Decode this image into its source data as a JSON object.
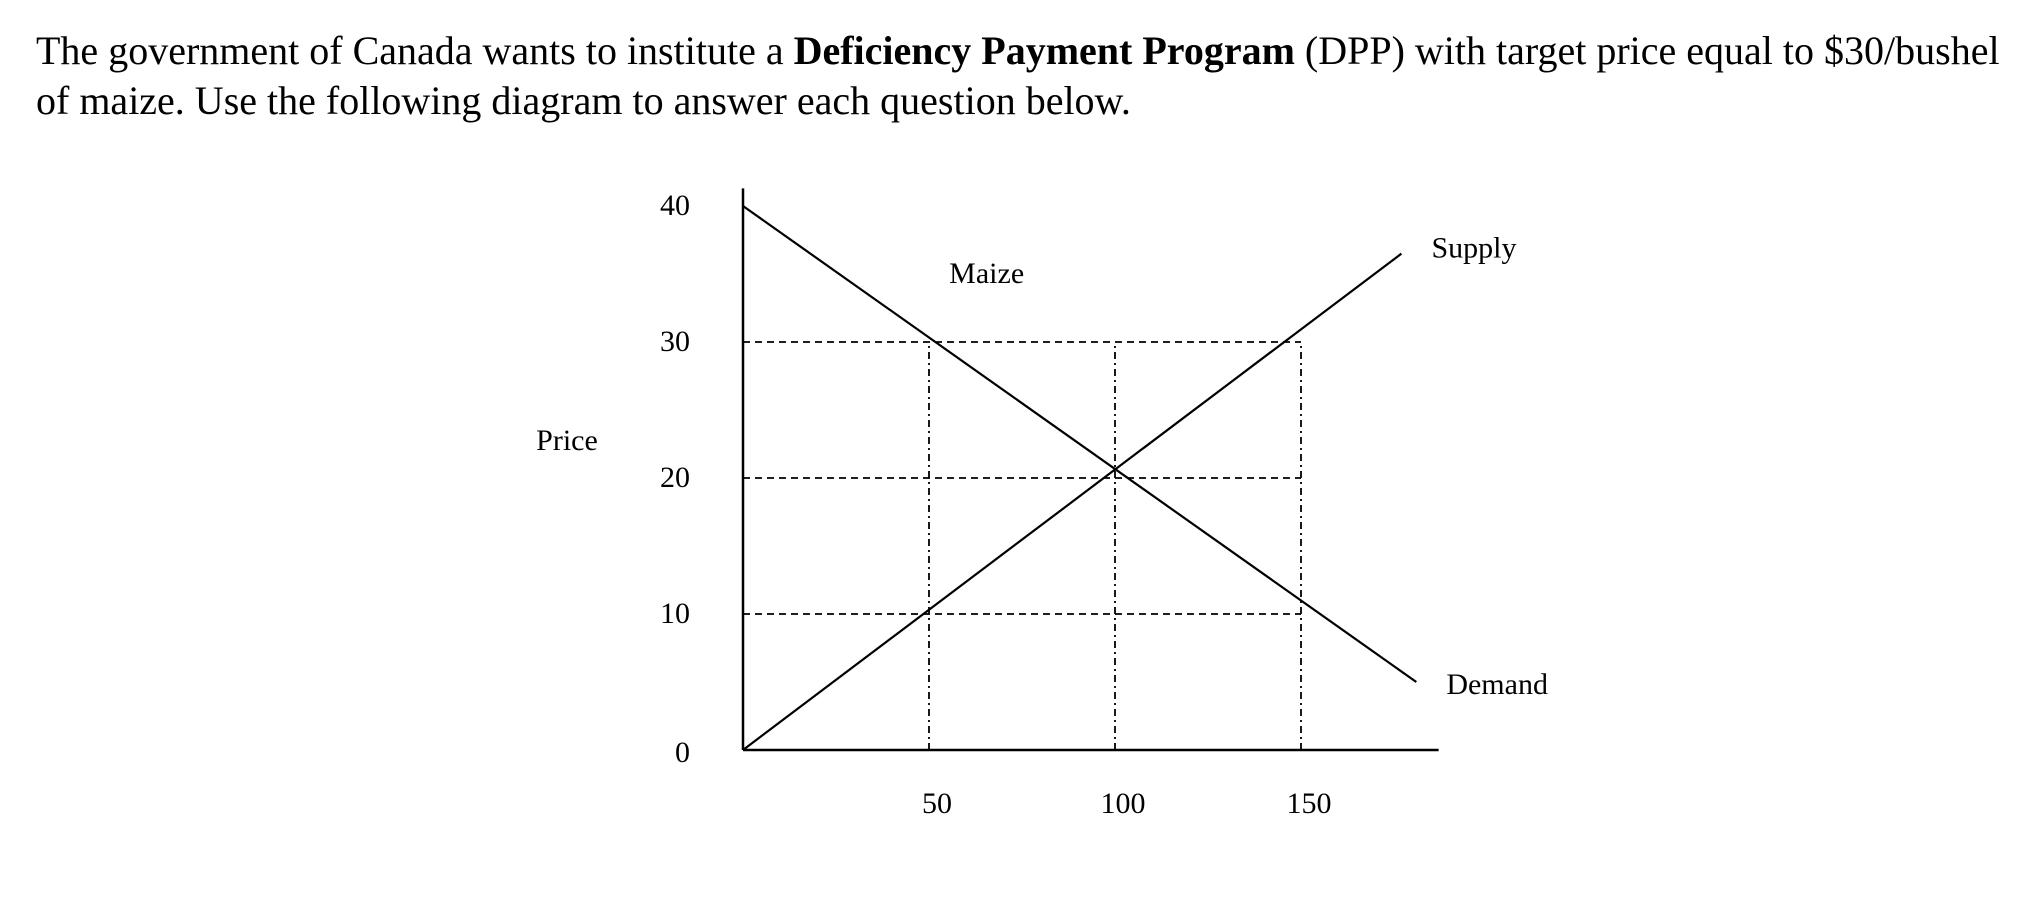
{
  "question": {
    "part1": "The government of Canada wants to institute a ",
    "bold": "Deficiency Payment Program",
    "part2": " (DPP) with target price equal to $30/bushel of maize. Use the following diagram to answer each question below."
  },
  "chart_data": {
    "type": "line",
    "title": "Maize",
    "xlabel": "",
    "ylabel": "Price",
    "xlim": [
      0,
      187
    ],
    "ylim": [
      0,
      40
    ],
    "x_ticks": [
      {
        "value": 50,
        "label": "50"
      },
      {
        "value": 100,
        "label": "100"
      },
      {
        "value": 150,
        "label": "150"
      }
    ],
    "y_ticks": [
      {
        "value": 0,
        "label": "0"
      },
      {
        "value": 10,
        "label": "10"
      },
      {
        "value": 20,
        "label": "20"
      },
      {
        "value": 30,
        "label": "30"
      },
      {
        "value": 40,
        "label": "40"
      }
    ],
    "series": [
      {
        "name": "Supply",
        "points": [
          [
            0,
            0
          ],
          [
            177,
            36.5
          ]
        ]
      },
      {
        "name": "Demand",
        "points": [
          [
            0,
            40
          ],
          [
            181,
            5
          ]
        ]
      }
    ],
    "reference_lines": {
      "horizontal": [
        10,
        20,
        30
      ],
      "vertical": [
        50,
        100,
        150
      ]
    },
    "grid": false,
    "legend": "none"
  }
}
